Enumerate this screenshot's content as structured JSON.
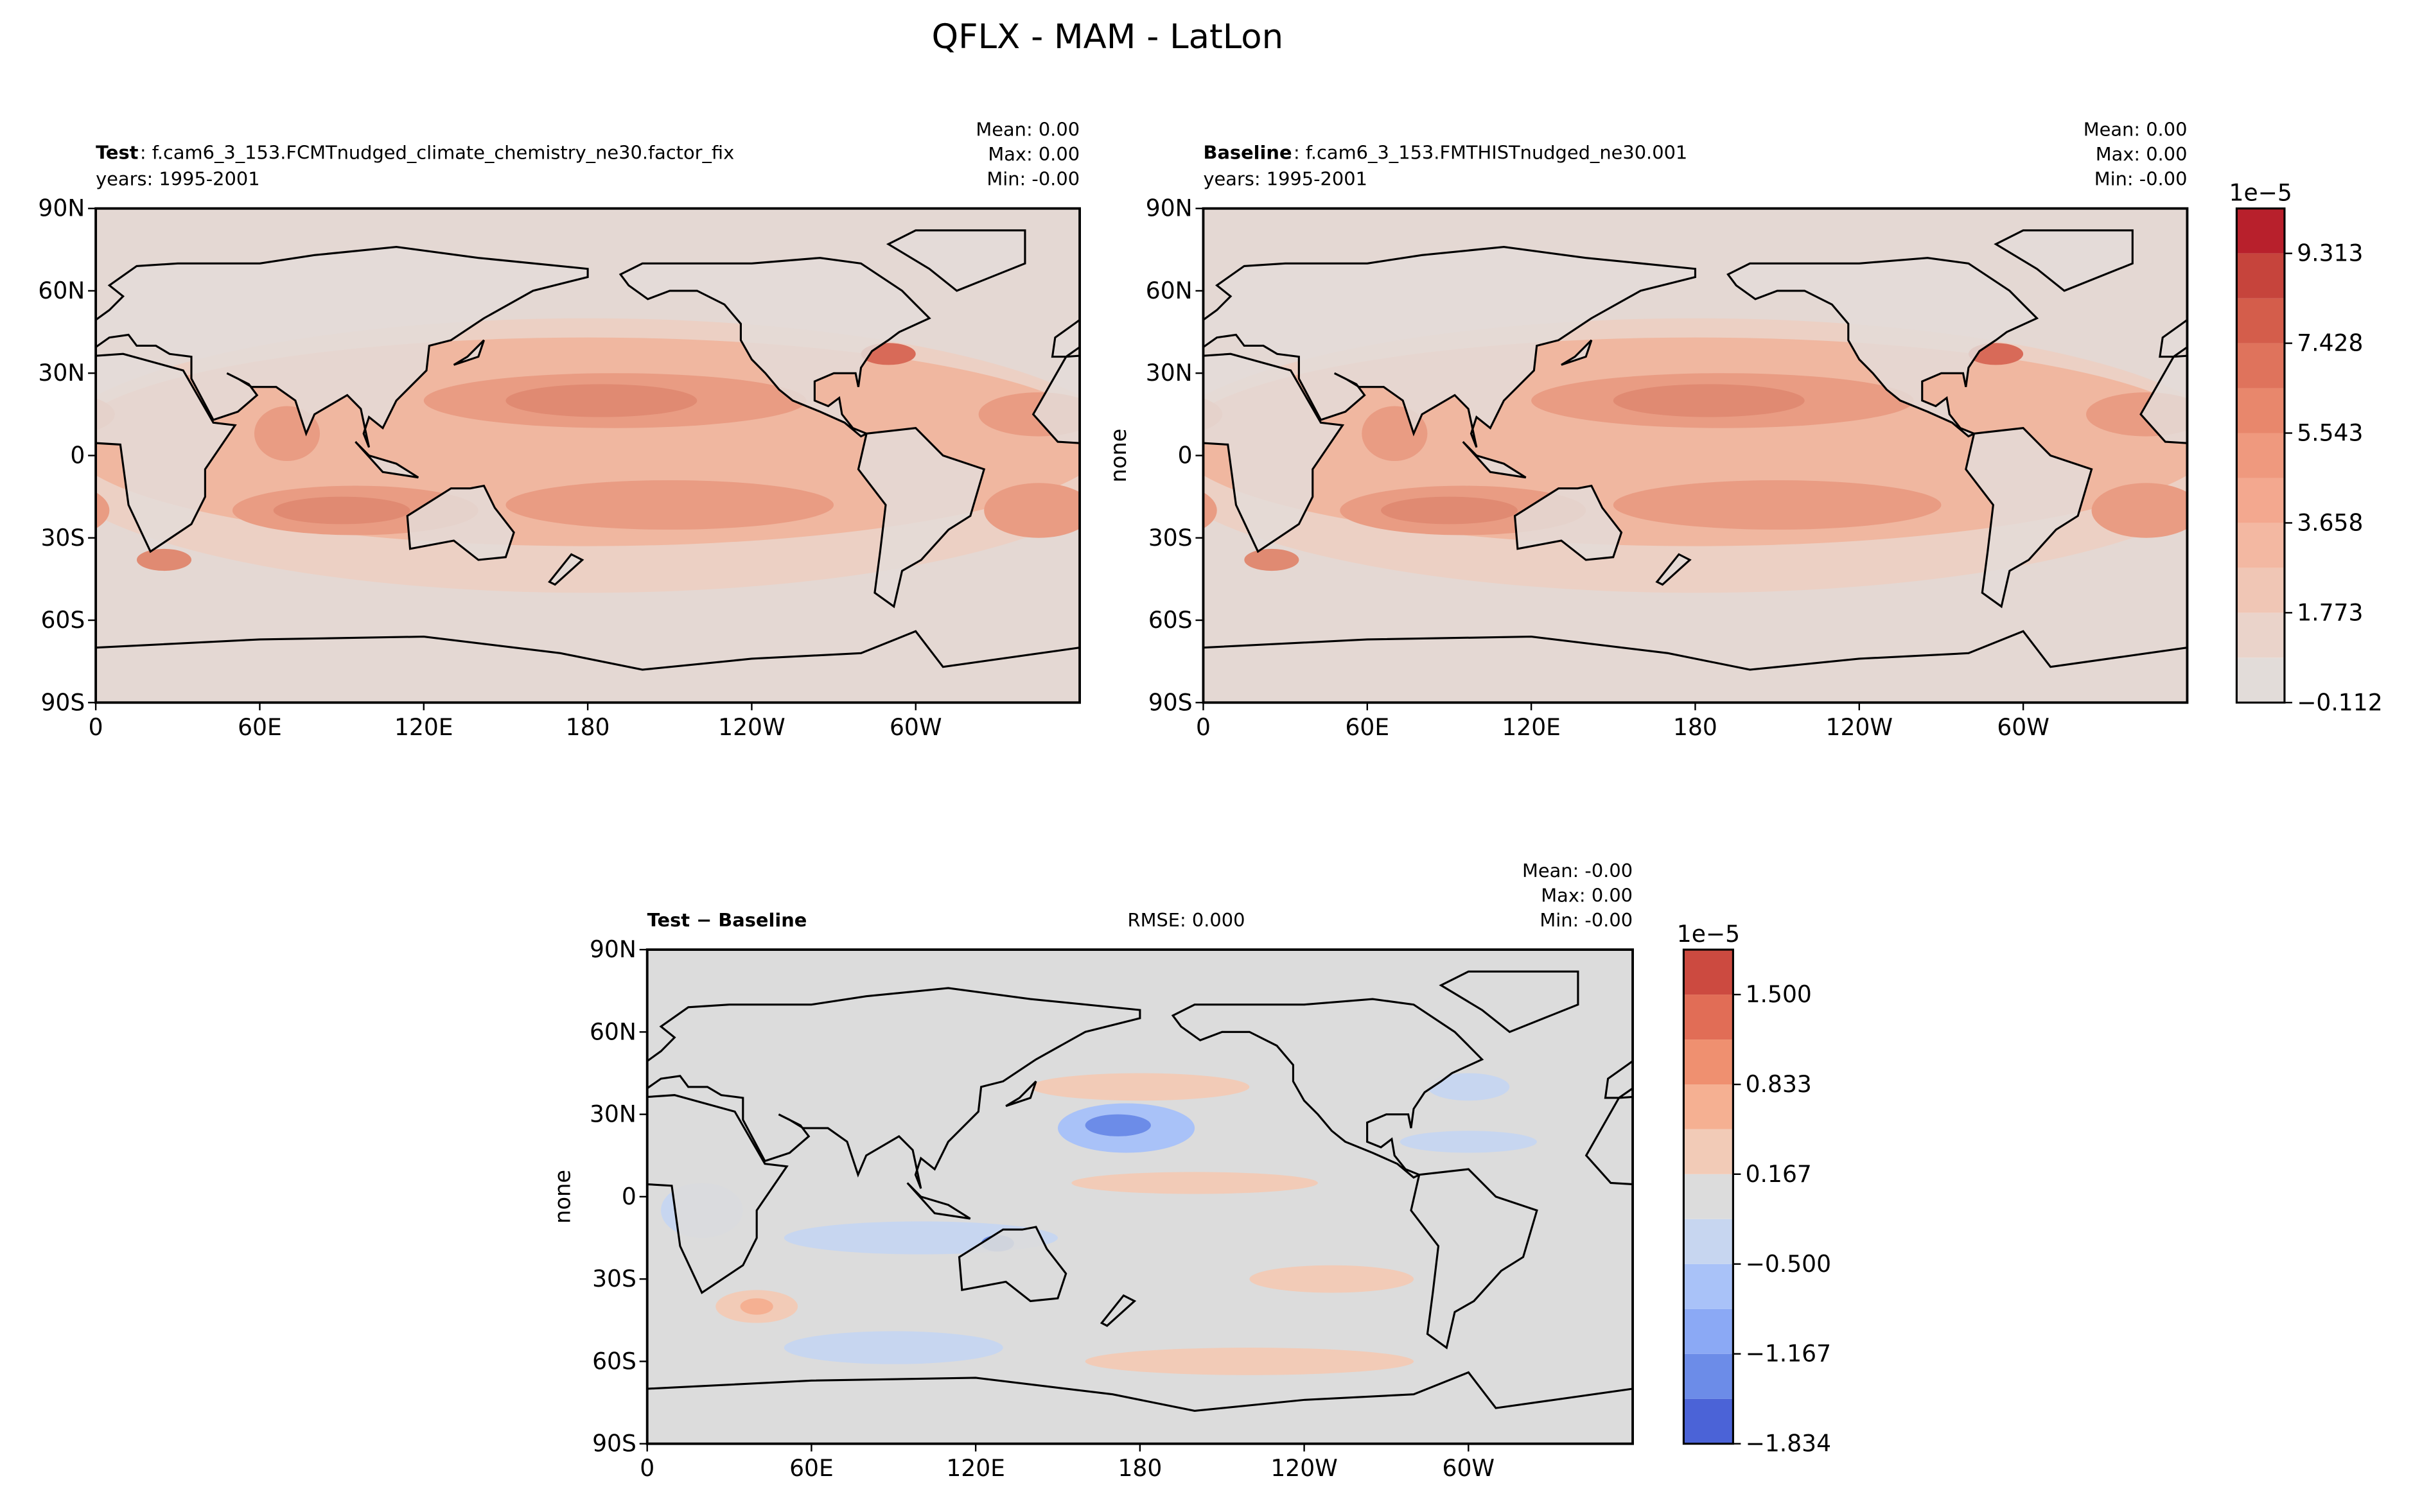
{
  "title": "QFLX - MAM - LatLon",
  "chart_data": [
    {
      "type": "map",
      "style": "full",
      "header_bold": "Test",
      "header": ": f.cam6_3_153.FCMTnudged_climate_chemistry_ne30.factor_fix",
      "subheader": "years: 1995-2001",
      "stats": [
        "Mean:  0.00",
        "Max:  0.00",
        "Min: -0.00"
      ],
      "xlim": [
        0,
        360
      ],
      "ylim": [
        -90,
        90
      ],
      "xticks": [
        0,
        {
          "value": 60,
          "label": "60E"
        },
        {
          "value": 120,
          "label": "120E"
        },
        180,
        {
          "value": 240,
          "label": "120W"
        },
        {
          "value": 300,
          "label": "60W"
        }
      ],
      "yticks": [
        {
          "value": -90,
          "label": "90S"
        },
        {
          "value": -60,
          "label": "60S"
        },
        {
          "value": -30,
          "label": "30S"
        },
        0,
        {
          "value": 30,
          "label": "30N"
        },
        {
          "value": 60,
          "label": "60N"
        },
        {
          "value": 90,
          "label": "90N"
        }
      ]
    },
    {
      "type": "map",
      "style": "full",
      "header_bold": "Baseline",
      "header": ": f.cam6_3_153.FMTHISTnudged_ne30.001",
      "subheader": "years: 1995-2001",
      "stats": [
        "Mean:  0.00",
        "Max:  0.00",
        "Min: -0.00"
      ],
      "ylabel": "none",
      "xlim": [
        0,
        360
      ],
      "ylim": [
        -90,
        90
      ],
      "xticks": [
        0,
        {
          "value": 60,
          "label": "60E"
        },
        {
          "value": 120,
          "label": "120E"
        },
        180,
        {
          "value": 240,
          "label": "120W"
        },
        {
          "value": 300,
          "label": "60W"
        }
      ],
      "yticks": [
        {
          "value": -90,
          "label": "90S"
        },
        {
          "value": -60,
          "label": "60S"
        },
        {
          "value": -30,
          "label": "30S"
        },
        0,
        {
          "value": 30,
          "label": "30N"
        },
        {
          "value": 60,
          "label": "60N"
        },
        {
          "value": 90,
          "label": "90N"
        }
      ]
    },
    {
      "type": "colorbar",
      "offset_label": "1e−5",
      "levels": [
        -0.112,
        0.8305,
        1.773,
        2.7155,
        3.658,
        4.6005,
        5.543,
        6.4855,
        7.428,
        8.3705,
        9.313,
        10.2555
      ],
      "colors": [
        "#e2dcd9",
        "#ead3ca",
        "#f0c6b5",
        "#f3b8a2",
        "#f3a88f",
        "#ef997e",
        "#e8876c",
        "#df735c",
        "#d45d4b",
        "#c6443c",
        "#b8202c"
      ],
      "ylim": [
        -0.112,
        10.2555
      ],
      "yticks": [
        {
          "value": -0.112,
          "label": "−0.112"
        },
        1.773,
        3.658,
        5.543,
        7.428,
        9.313
      ]
    },
    {
      "type": "map",
      "style": "diff",
      "header_bold": "Test − Baseline",
      "rmse": "RMSE: 0.000",
      "stats": [
        "Mean: -0.00",
        "Max:  0.00",
        "Min: -0.00"
      ],
      "ylabel": "none",
      "xlim": [
        0,
        360
      ],
      "ylim": [
        -90,
        90
      ],
      "xticks": [
        0,
        {
          "value": 60,
          "label": "60E"
        },
        {
          "value": 120,
          "label": "120E"
        },
        180,
        {
          "value": 240,
          "label": "120W"
        },
        {
          "value": 300,
          "label": "60W"
        }
      ],
      "yticks": [
        {
          "value": -90,
          "label": "90S"
        },
        {
          "value": -60,
          "label": "60S"
        },
        {
          "value": -30,
          "label": "30S"
        },
        0,
        {
          "value": 30,
          "label": "30N"
        },
        {
          "value": 60,
          "label": "60N"
        },
        {
          "value": 90,
          "label": "90N"
        }
      ]
    },
    {
      "type": "colorbar",
      "offset_label": "1e−5",
      "levels": [
        -1.834,
        -1.5005,
        -1.167,
        -0.8335,
        -0.5,
        -0.1665,
        0.167,
        0.5005,
        0.833,
        1.1665,
        1.5,
        1.8335
      ],
      "colors": [
        "#4b63d7",
        "#6c8ce8",
        "#8ba9f5",
        "#a9c2f8",
        "#c7d6f0",
        "#dcdcdc",
        "#f2cbb7",
        "#f5b092",
        "#ef9070",
        "#e16d56",
        "#cc4a40"
      ],
      "ylim": [
        -1.834,
        1.8335
      ],
      "yticks": [
        {
          "value": -1.834,
          "label": "−1.834"
        },
        {
          "value": -1.167,
          "label": "−1.167"
        },
        {
          "value": -0.5,
          "label": "−0.500"
        },
        0.167,
        0.833,
        {
          "value": 1.5,
          "label": "1.500"
        }
      ]
    }
  ]
}
